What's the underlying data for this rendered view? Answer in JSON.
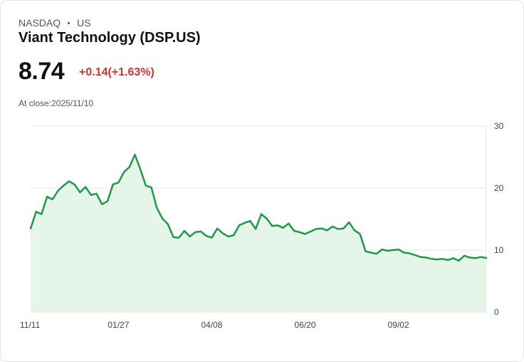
{
  "header": {
    "exchange": "NASDAQ",
    "region": "US",
    "title": "Viant Technology (DSP.US)",
    "price": "8.74",
    "change": "+0.14(+1.63%)",
    "at_close": "At close:2025/11/10"
  },
  "colors": {
    "line": "#1a9b44",
    "area": "#e6f5ea",
    "change_negative_red": "#d9302f",
    "grid": "#e4e4e4"
  },
  "chart_data": {
    "type": "area",
    "title": "",
    "xlabel": "",
    "ylabel": "",
    "ylim": [
      0,
      30
    ],
    "yticks": [
      "0",
      "10",
      "20",
      "30"
    ],
    "xtick_labels": [
      "11/11",
      "01/27",
      "04/08",
      "06/20",
      "09/02"
    ],
    "grid": "horizontal",
    "x": [
      "11/11",
      "11/14",
      "11/18",
      "11/21",
      "11/25",
      "11/29",
      "12/04",
      "12/09",
      "12/13",
      "12/18",
      "12/23",
      "12/30",
      "01/06",
      "01/10",
      "01/15",
      "01/21",
      "01/27",
      "01/30",
      "02/04",
      "02/07",
      "02/12",
      "02/14",
      "02/19",
      "02/24",
      "02/27",
      "03/04",
      "03/07",
      "03/12",
      "03/17",
      "03/21",
      "03/26",
      "03/31",
      "04/03",
      "04/08",
      "04/11",
      "04/16",
      "04/22",
      "04/25",
      "04/30",
      "05/05",
      "05/08",
      "05/13",
      "05/16",
      "05/21",
      "05/27",
      "05/30",
      "06/04",
      "06/09",
      "06/12",
      "06/17",
      "06/20",
      "06/25",
      "06/30",
      "07/03",
      "07/09",
      "07/14",
      "07/17",
      "07/22",
      "07/25",
      "07/30",
      "08/04",
      "08/07",
      "08/12",
      "08/15",
      "08/20",
      "08/25",
      "08/28",
      "09/02",
      "09/05",
      "09/10",
      "09/15",
      "09/18",
      "09/23",
      "09/26",
      "10/01",
      "10/06",
      "10/09",
      "10/14",
      "10/17",
      "10/22",
      "10/27",
      "10/30",
      "11/04",
      "11/10"
    ],
    "series": [
      {
        "values": [
          13.5,
          16.2,
          15.8,
          18.6,
          18.2,
          19.6,
          20.4,
          21.1,
          20.6,
          19.3,
          20.2,
          18.9,
          19.1,
          17.4,
          17.9,
          20.6,
          20.9,
          22.6,
          23.4,
          25.4,
          23.0,
          20.4,
          20.1,
          16.8,
          15.1,
          14.2,
          12.1,
          12.0,
          13.1,
          12.2,
          12.9,
          13.0,
          12.3,
          12.0,
          13.5,
          12.7,
          12.2,
          12.4,
          14.0,
          14.4,
          14.7,
          13.4,
          15.8,
          15.1,
          13.9,
          14.0,
          13.6,
          14.3,
          13.1,
          12.9,
          12.6,
          13.0,
          13.4,
          13.5,
          13.2,
          13.8,
          13.4,
          13.5,
          14.5,
          13.2,
          12.6,
          9.8,
          9.6,
          9.4,
          10.1,
          9.9,
          10.0,
          10.1,
          9.6,
          9.5,
          9.2,
          8.9,
          8.8,
          8.6,
          8.5,
          8.6,
          8.4,
          8.7,
          8.3,
          9.1,
          8.8,
          8.7,
          8.9,
          8.74
        ]
      }
    ]
  }
}
